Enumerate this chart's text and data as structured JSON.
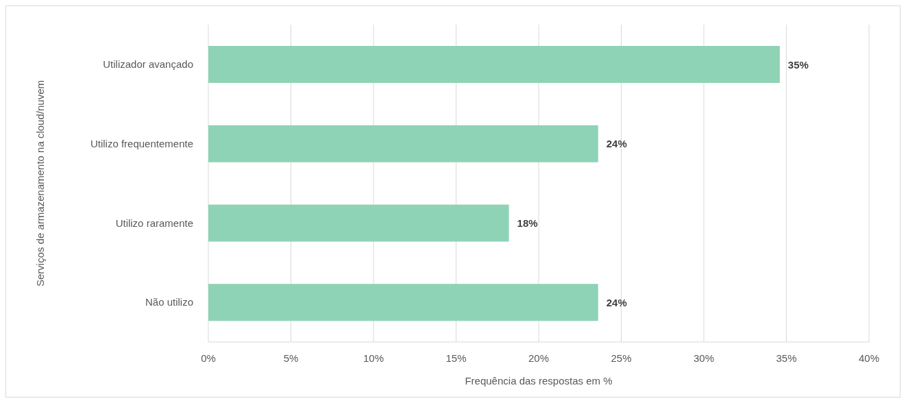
{
  "chart_data": {
    "type": "bar",
    "orientation": "horizontal",
    "ylabel": "Serviços de armazenamento na cloud/nuvem",
    "xlabel": "Frequência das respostas em %",
    "categories": [
      "Utilizador avançado",
      "Utilizo frequentemente",
      "Utilizo raramente",
      "Não utilizo"
    ],
    "values": [
      34.6,
      23.6,
      18.2,
      23.6
    ],
    "color": "#8fd3b6",
    "value_labels": [
      "35%",
      "24%",
      "18%",
      "24%"
    ],
    "xlim": [
      0,
      40
    ],
    "xticks": [
      {
        "value": 0,
        "label": "0%"
      },
      {
        "value": 5,
        "label": "5%"
      },
      {
        "value": 10,
        "label": "10%"
      },
      {
        "value": 15,
        "label": "15%"
      },
      {
        "value": 20,
        "label": "20%"
      },
      {
        "value": 25,
        "label": "25%"
      },
      {
        "value": 30,
        "label": "30%"
      },
      {
        "value": 35,
        "label": "35%"
      },
      {
        "value": 40,
        "label": "40%"
      }
    ],
    "grid": "x"
  }
}
